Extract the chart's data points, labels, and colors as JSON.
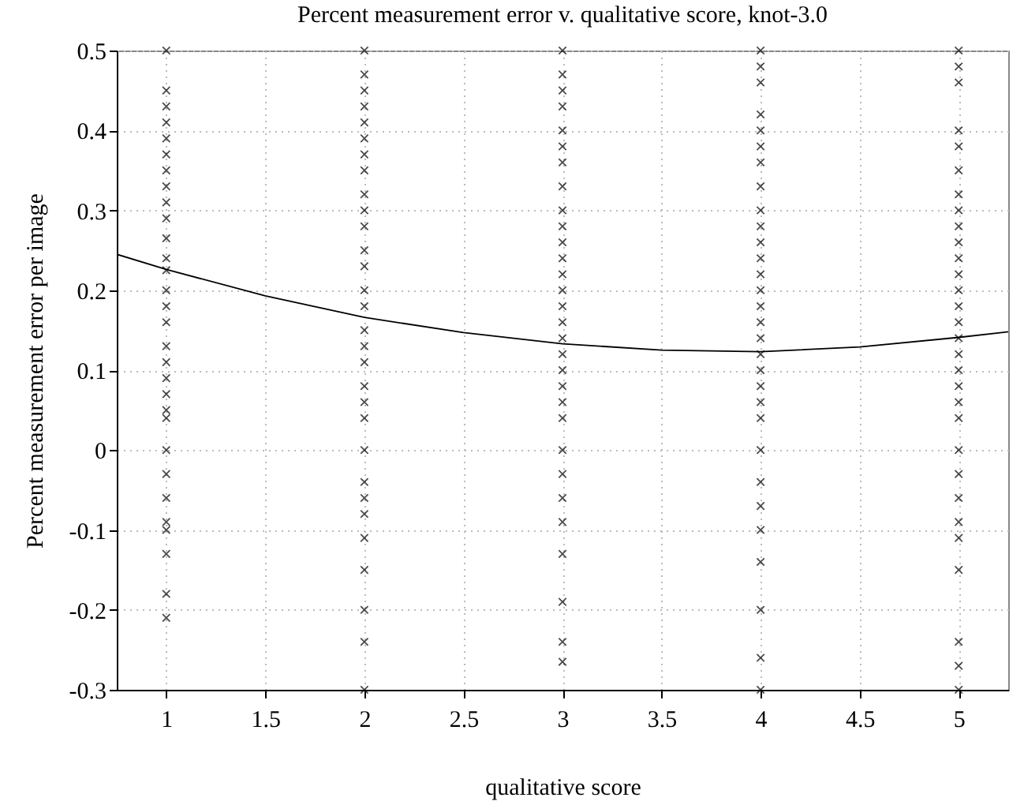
{
  "chart_data": {
    "type": "scatter",
    "title": "Percent measurement error v. qualitative score, knot-3.0",
    "xlabel": "qualitative score",
    "ylabel": "Percent measurement error per image",
    "xlim": [
      0.75,
      5.25
    ],
    "xticks": [
      1,
      1.5,
      2,
      2.5,
      3,
      3.5,
      4,
      4.5,
      5
    ],
    "ylim": [
      -0.3,
      0.5
    ],
    "yticks": [
      -0.3,
      -0.2,
      -0.1,
      0,
      0.1,
      0.2,
      0.3,
      0.4,
      0.5
    ],
    "grid": true,
    "series": [
      {
        "marker": "cross",
        "color": "#000000",
        "x": [
          1,
          1,
          1,
          1,
          1,
          1,
          1,
          1,
          1,
          1,
          1,
          1,
          1,
          1,
          1,
          1,
          1,
          1,
          1,
          1,
          1,
          1,
          1,
          1,
          1,
          1,
          1,
          1,
          1,
          1,
          2,
          2,
          2,
          2,
          2,
          2,
          2,
          2,
          2,
          2,
          2,
          2,
          2,
          2,
          2,
          2,
          2,
          2,
          2,
          2,
          2,
          2,
          2,
          2,
          2,
          2,
          2,
          2,
          2,
          2,
          3,
          3,
          3,
          3,
          3,
          3,
          3,
          3,
          3,
          3,
          3,
          3,
          3,
          3,
          3,
          3,
          3,
          3,
          3,
          3,
          3,
          3,
          3,
          3,
          3,
          3,
          3,
          3,
          3,
          3,
          4,
          4,
          4,
          4,
          4,
          4,
          4,
          4,
          4,
          4,
          4,
          4,
          4,
          4,
          4,
          4,
          4,
          4,
          4,
          4,
          4,
          4,
          4,
          4,
          4,
          4,
          4,
          4,
          4,
          4,
          5,
          5,
          5,
          5,
          5,
          5,
          5,
          5,
          5,
          5,
          5,
          5,
          5,
          5,
          5,
          5,
          5,
          5,
          5,
          5,
          5,
          5,
          5,
          5,
          5,
          5,
          5,
          5,
          5,
          5
        ],
        "values": [
          0.5,
          0.45,
          0.43,
          0.41,
          0.39,
          0.37,
          0.35,
          0.33,
          0.31,
          0.29,
          0.265,
          0.24,
          0.225,
          0.2,
          0.18,
          0.16,
          0.13,
          0.11,
          0.09,
          0.07,
          0.05,
          0.04,
          0,
          -0.03,
          -0.06,
          -0.09,
          -0.1,
          -0.13,
          -0.18,
          -0.21,
          0.5,
          0.47,
          0.45,
          0.43,
          0.41,
          0.39,
          0.37,
          0.35,
          0.32,
          0.3,
          0.28,
          0.25,
          0.23,
          0.2,
          0.18,
          0.15,
          0.13,
          0.11,
          0.08,
          0.06,
          0.04,
          0,
          -0.04,
          -0.06,
          -0.08,
          -0.11,
          -0.15,
          -0.2,
          -0.24,
          -0.3,
          0.5,
          0.47,
          0.45,
          0.43,
          0.4,
          0.38,
          0.36,
          0.33,
          0.3,
          0.28,
          0.26,
          0.24,
          0.22,
          0.2,
          0.18,
          0.16,
          0.14,
          0.12,
          0.1,
          0.08,
          0.06,
          0.04,
          0,
          -0.03,
          -0.06,
          -0.09,
          -0.13,
          -0.19,
          -0.24,
          -0.265,
          0.5,
          0.48,
          0.46,
          0.42,
          0.4,
          0.38,
          0.36,
          0.33,
          0.3,
          0.28,
          0.26,
          0.24,
          0.22,
          0.2,
          0.18,
          0.16,
          0.14,
          0.12,
          0.1,
          0.08,
          0.06,
          0.04,
          0,
          -0.04,
          -0.07,
          -0.1,
          -0.14,
          -0.2,
          -0.26,
          -0.3,
          0.5,
          0.48,
          0.46,
          0.4,
          0.38,
          0.35,
          0.32,
          0.3,
          0.28,
          0.26,
          0.24,
          0.22,
          0.2,
          0.18,
          0.16,
          0.14,
          0.12,
          0.1,
          0.08,
          0.06,
          0.04,
          0,
          -0.03,
          -0.06,
          -0.09,
          -0.11,
          -0.15,
          -0.24,
          -0.27,
          -0.3
        ]
      },
      {
        "type": "line",
        "color": "#000000",
        "x": [
          0.75,
          1,
          1.5,
          2,
          2.5,
          3,
          3.5,
          4,
          4.5,
          5,
          5.25
        ],
        "values": [
          0.245,
          0.226,
          0.193,
          0.166,
          0.147,
          0.133,
          0.125,
          0.123,
          0.129,
          0.141,
          0.148
        ]
      }
    ]
  }
}
